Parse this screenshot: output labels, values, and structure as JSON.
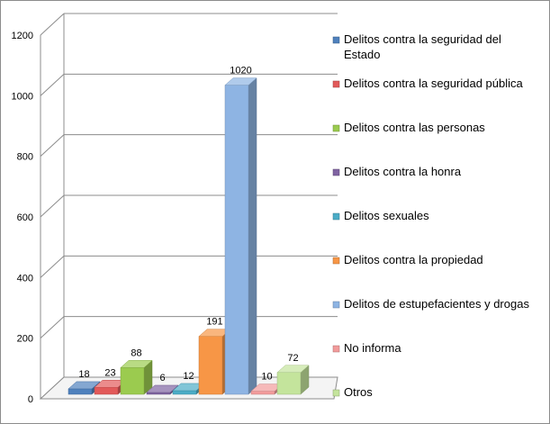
{
  "chart_data": {
    "type": "bar",
    "style": "3d-clustered",
    "title": "",
    "xlabel": "",
    "ylabel": "",
    "ylim": [
      0,
      1200
    ],
    "yticks": [
      0,
      200,
      400,
      600,
      800,
      1000,
      1200
    ],
    "grid": true,
    "legend_position": "right",
    "series": [
      {
        "name": "Delitos contra la seguridad del Estado",
        "value": 18,
        "color": "#4f81bd"
      },
      {
        "name": "Delitos contra la seguridad pública",
        "value": 23,
        "color": "#e25a5a"
      },
      {
        "name": "Delitos contra las personas",
        "value": 88,
        "color": "#9bcb4f"
      },
      {
        "name": "Delitos contra la honra",
        "value": 6,
        "color": "#8064a2"
      },
      {
        "name": "Delitos sexuales",
        "value": 12,
        "color": "#4bacc6"
      },
      {
        "name": "Delitos contra la propiedad",
        "value": 191,
        "color": "#f79646"
      },
      {
        "name": "Delitos de estupefacientes y drogas",
        "value": 1020,
        "color": "#8eb4e3"
      },
      {
        "name": "No informa",
        "value": 10,
        "color": "#f29b9b"
      },
      {
        "name": "Otros",
        "value": 72,
        "color": "#c4e49c"
      }
    ]
  }
}
